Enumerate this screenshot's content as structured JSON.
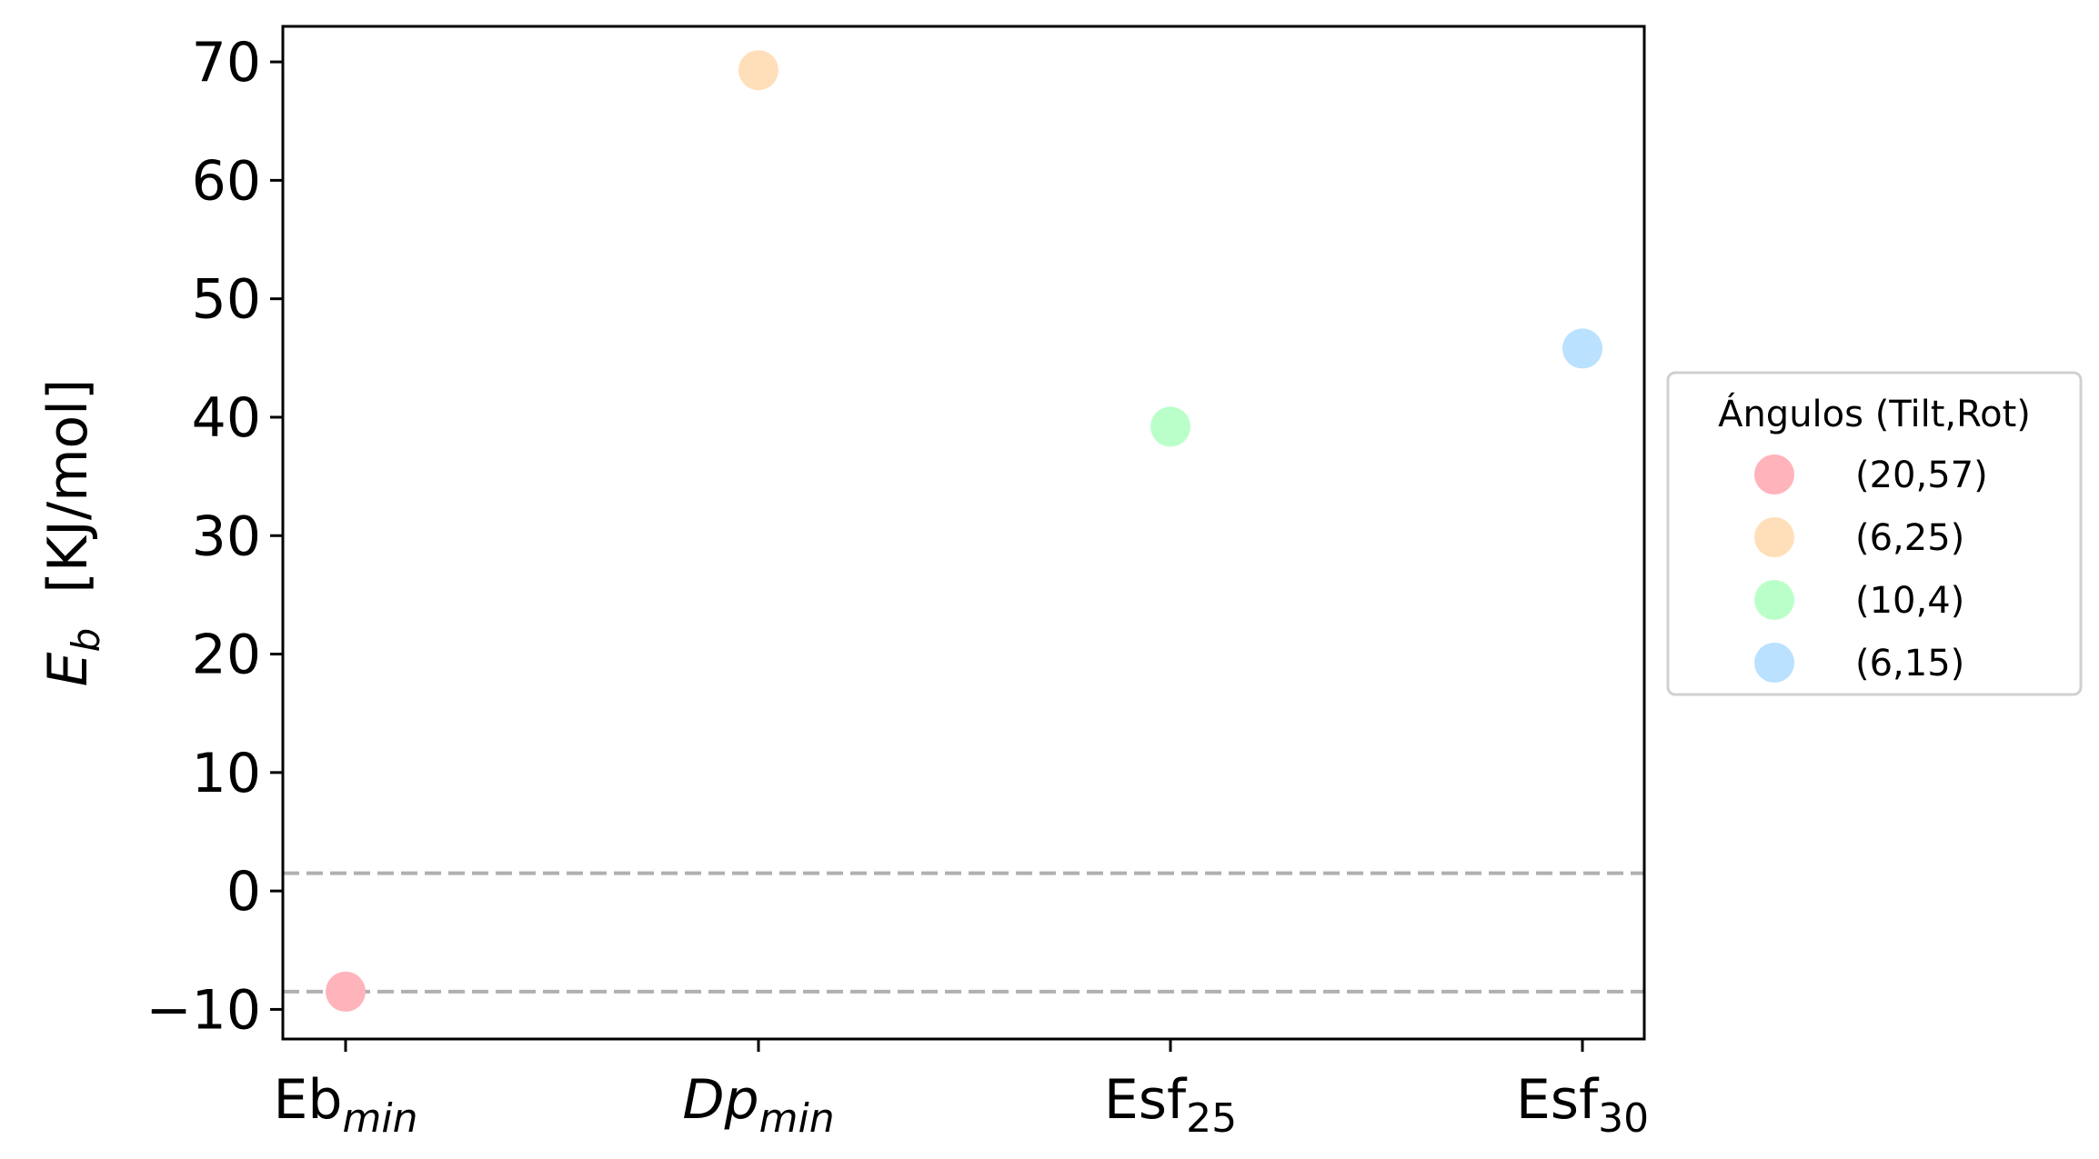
{
  "chart_data": {
    "type": "scatter",
    "title": "",
    "ylabel": {
      "symbol": "E",
      "subscript": "b",
      "units": "[KJ/mol]"
    },
    "xlabel": "",
    "ylim": [
      -12.5,
      73
    ],
    "yticks": [
      -10,
      0,
      10,
      20,
      30,
      40,
      50,
      60,
      70
    ],
    "yticks_text": [
      "−10",
      "0",
      "10",
      "20",
      "30",
      "40",
      "50",
      "60",
      "70"
    ],
    "categories": [
      {
        "base": "Eb",
        "sub": "min",
        "italic_base": false
      },
      {
        "base": "Dp",
        "sub": "min",
        "italic_base": true
      },
      {
        "base": "Esf",
        "sub": "25",
        "italic_base": false
      },
      {
        "base": "Esf",
        "sub": "30",
        "italic_base": false
      }
    ],
    "series": [
      {
        "name": "(20,57)",
        "category_index": 0,
        "value": -8.5,
        "color": "#ffb3ba"
      },
      {
        "name": "(6,25)",
        "category_index": 1,
        "value": 69.3,
        "color": "#ffdfba"
      },
      {
        "name": "(10,4)",
        "category_index": 2,
        "value": 39.2,
        "color": "#baffc9"
      },
      {
        "name": "(6,15)",
        "category_index": 3,
        "value": 45.8,
        "color": "#bae1ff"
      }
    ],
    "reference_lines": [
      {
        "y": 1.5,
        "style": "dashed",
        "color": "#b0b0b0"
      },
      {
        "y": -8.5,
        "style": "dashed",
        "color": "#b0b0b0"
      }
    ],
    "legend": {
      "title": "Ángulos (Tilt,Rot)",
      "placement": "right, outside plot area"
    },
    "grid": false
  }
}
